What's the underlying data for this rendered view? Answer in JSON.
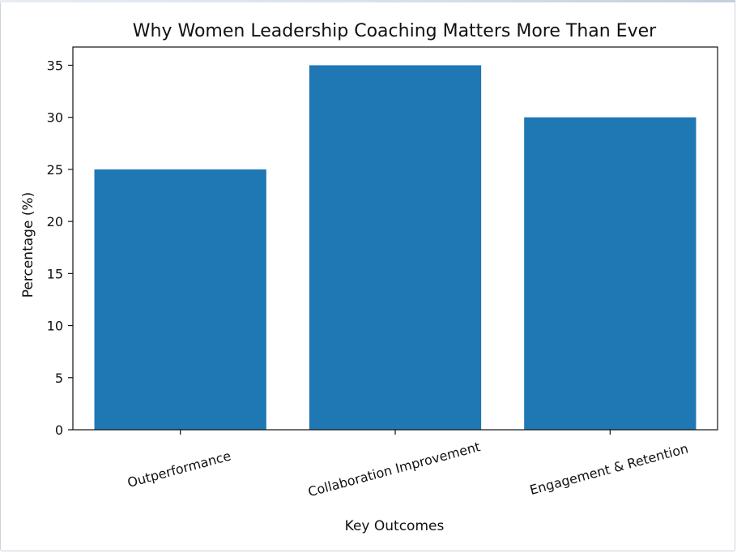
{
  "chart_data": {
    "type": "bar",
    "title": "Why Women Leadership Coaching Matters More Than Ever",
    "xlabel": "Key Outcomes",
    "ylabel": "Percentage (%)",
    "categories": [
      "Outperformance",
      "Collaboration Improvement",
      "Engagement & Retention"
    ],
    "values": [
      25,
      35,
      30
    ],
    "ylim": [
      0,
      36.75
    ],
    "yticks": [
      0,
      5,
      10,
      15,
      20,
      25,
      30,
      35
    ],
    "bar_color": "#1f77b4",
    "grid": false,
    "legend": "none"
  }
}
